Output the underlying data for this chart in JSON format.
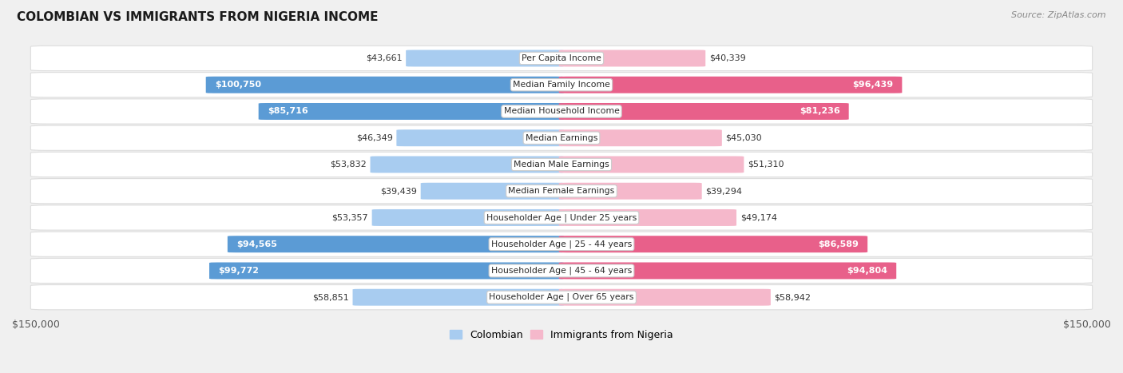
{
  "title": "COLOMBIAN VS IMMIGRANTS FROM NIGERIA INCOME",
  "source": "Source: ZipAtlas.com",
  "categories": [
    "Per Capita Income",
    "Median Family Income",
    "Median Household Income",
    "Median Earnings",
    "Median Male Earnings",
    "Median Female Earnings",
    "Householder Age | Under 25 years",
    "Householder Age | 25 - 44 years",
    "Householder Age | 45 - 64 years",
    "Householder Age | Over 65 years"
  ],
  "colombian_values": [
    43661,
    100750,
    85716,
    46349,
    53832,
    39439,
    53357,
    94565,
    99772,
    58851
  ],
  "nigeria_values": [
    40339,
    96439,
    81236,
    45030,
    51310,
    39294,
    49174,
    86589,
    94804,
    58942
  ],
  "colombian_labels": [
    "$43,661",
    "$100,750",
    "$85,716",
    "$46,349",
    "$53,832",
    "$39,439",
    "$53,357",
    "$94,565",
    "$99,772",
    "$58,851"
  ],
  "nigeria_labels": [
    "$40,339",
    "$96,439",
    "$81,236",
    "$45,030",
    "$51,310",
    "$39,294",
    "$49,174",
    "$86,589",
    "$94,804",
    "$58,942"
  ],
  "colombian_color_light": "#a8ccf0",
  "colombian_color_dark": "#5b9bd5",
  "nigeria_color_light": "#f5b8cb",
  "nigeria_color_dark": "#e8608a",
  "threshold": 70000,
  "max_value": 150000,
  "bar_height": 0.62,
  "bg_color": "#f0f0f0",
  "row_bg": "#f8f8f8",
  "row_border": "#dddddd",
  "legend_colombian": "Colombian",
  "legend_nigeria": "Immigrants from Nigeria",
  "label_inside_threshold": 60000
}
